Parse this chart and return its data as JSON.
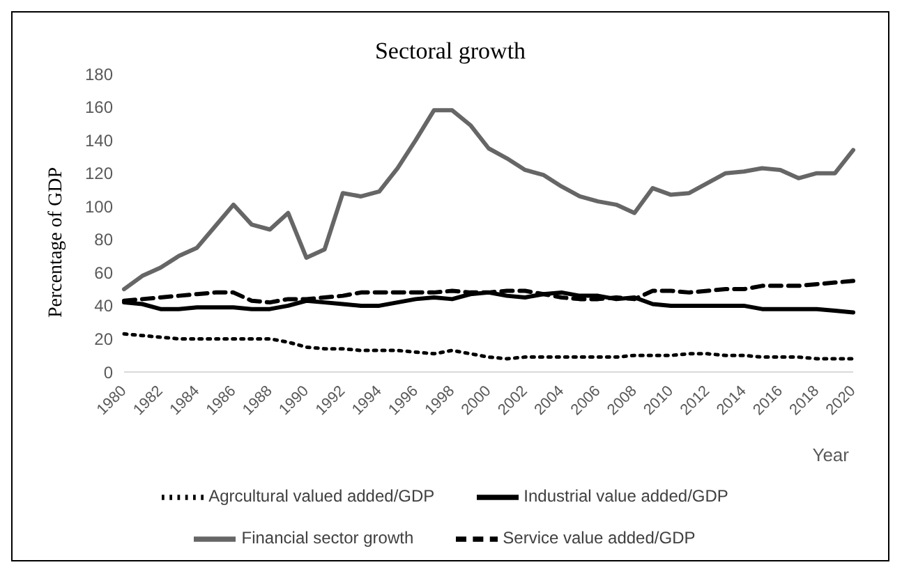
{
  "chart_data": {
    "type": "line",
    "title": "Sectoral growth",
    "xlabel": "Year",
    "ylabel": "Percentage of GDP",
    "categories": [
      "1980",
      null,
      "1982",
      null,
      "1984",
      null,
      "1986",
      null,
      "1988",
      null,
      "1990",
      null,
      "1992",
      null,
      "1994",
      null,
      "1996",
      null,
      "1998",
      null,
      "2000",
      null,
      "2002",
      null,
      "2004",
      null,
      "2006",
      null,
      "2008",
      null,
      "2010",
      null,
      "2012",
      null,
      "2014",
      null,
      "2016",
      null,
      "2018",
      null,
      "2020"
    ],
    "series": [
      {
        "name": "Agrcultural valued added/GDP",
        "color": "#000000",
        "line_style": "dotted",
        "values": [
          23,
          22,
          21,
          20,
          20,
          20,
          20,
          20,
          20,
          18,
          15,
          14,
          14,
          13,
          13,
          13,
          12,
          11,
          13,
          11,
          9,
          8,
          9,
          9,
          9,
          9,
          9,
          9,
          10,
          10,
          10,
          11,
          11,
          10,
          10,
          9,
          9,
          9,
          8,
          8,
          8
        ]
      },
      {
        "name": "Industrial value added/GDP",
        "color": "#000000",
        "line_style": "solid",
        "values": [
          42,
          41,
          38,
          38,
          39,
          39,
          39,
          38,
          38,
          40,
          43,
          42,
          41,
          40,
          40,
          42,
          44,
          45,
          44,
          47,
          48,
          46,
          45,
          47,
          48,
          46,
          46,
          44,
          45,
          41,
          40,
          40,
          40,
          40,
          40,
          38,
          38,
          38,
          38,
          37,
          36
        ]
      },
      {
        "name": "Financial sector growth",
        "color": "#666666",
        "line_style": "solid",
        "values": [
          50,
          58,
          63,
          70,
          75,
          88,
          101,
          89,
          86,
          96,
          69,
          74,
          108,
          106,
          109,
          123,
          140,
          158,
          158,
          149,
          135,
          129,
          122,
          119,
          112,
          106,
          103,
          101,
          96,
          111,
          107,
          108,
          114,
          120,
          121,
          123,
          122,
          117,
          120,
          120,
          134
        ]
      },
      {
        "name": "Service value added/GDP",
        "color": "#000000",
        "line_style": "dashed",
        "values": [
          43,
          44,
          45,
          46,
          47,
          48,
          48,
          43,
          42,
          44,
          44,
          45,
          46,
          48,
          48,
          48,
          48,
          48,
          49,
          48,
          48,
          49,
          49,
          47,
          45,
          44,
          44,
          45,
          44,
          49,
          49,
          48,
          49,
          50,
          50,
          52,
          52,
          52,
          53,
          54,
          55
        ]
      }
    ],
    "ylim": [
      0,
      180
    ],
    "yticks": [
      0,
      20,
      40,
      60,
      80,
      100,
      120,
      140,
      160,
      180
    ],
    "grid": false,
    "legend": "bottom",
    "marker": "none"
  }
}
